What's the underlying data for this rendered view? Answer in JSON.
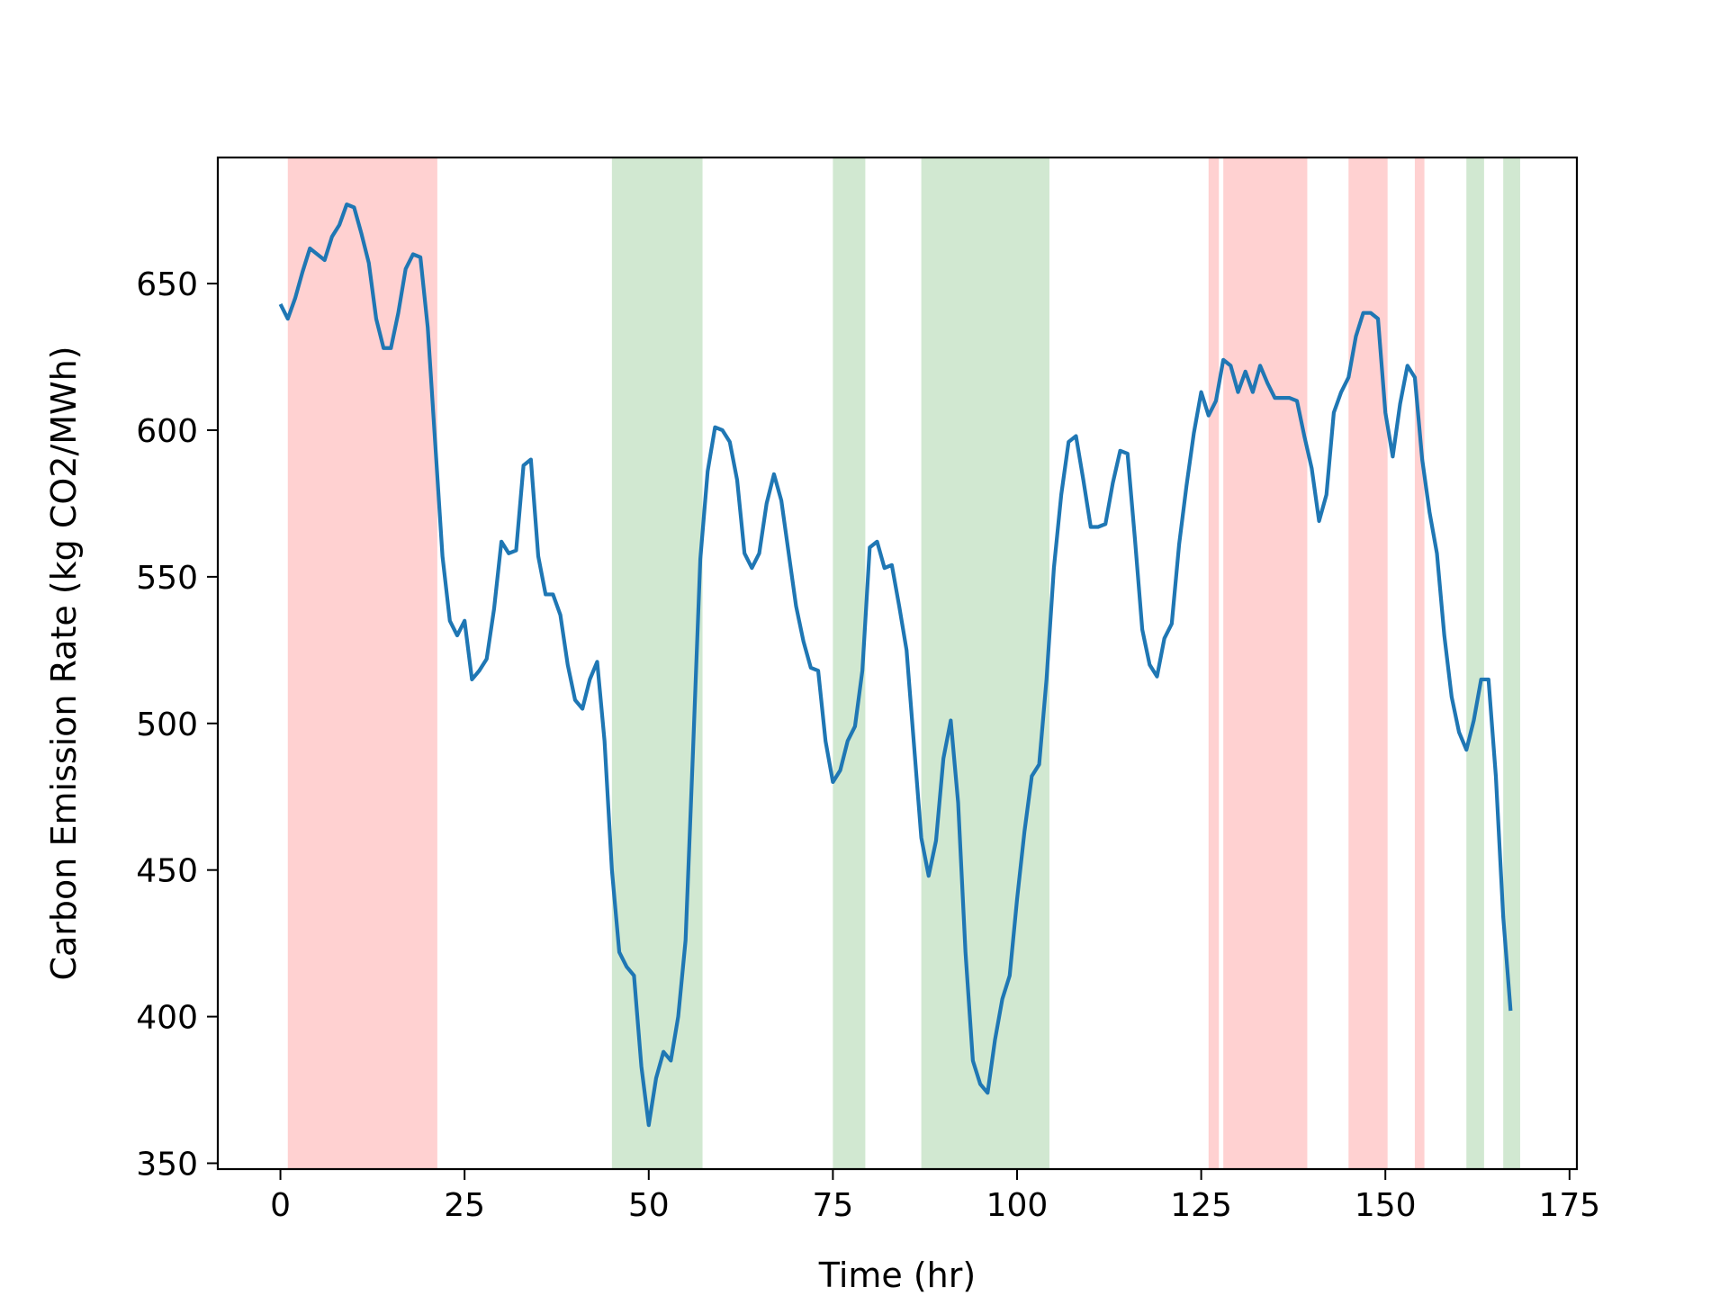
{
  "chart_data": {
    "type": "line",
    "title": "",
    "xlabel": "Time (hr)",
    "ylabel": "Carbon Emission Rate (kg CO2/MWh)",
    "xlim": [
      -8.5,
      176
    ],
    "ylim": [
      348,
      693
    ],
    "xticks": [
      0,
      25,
      50,
      75,
      100,
      125,
      150,
      175
    ],
    "yticks": [
      350,
      400,
      450,
      500,
      550,
      600,
      650
    ],
    "grid": false,
    "legend": "none",
    "colors": {
      "line": "#1f77b4",
      "high_band": "#ff9999",
      "low_band": "#99cc99"
    },
    "band_alpha": 0.45,
    "high_emission_bands": [
      [
        1,
        21.3
      ],
      [
        126,
        127.4
      ],
      [
        128,
        139.4
      ],
      [
        145,
        150.3
      ],
      [
        154,
        155.3
      ]
    ],
    "low_emission_bands": [
      [
        45,
        57.3
      ],
      [
        75,
        79.4
      ],
      [
        87,
        104.4
      ],
      [
        161,
        163.4
      ],
      [
        166,
        168.3
      ]
    ],
    "series": [
      {
        "x": [
          0,
          1,
          2,
          3,
          4,
          5,
          6,
          7,
          8,
          9,
          10,
          11,
          12,
          13,
          14,
          15,
          16,
          17,
          18,
          19,
          20,
          21,
          22,
          23,
          24,
          25,
          26,
          27,
          28,
          29,
          30,
          31,
          32,
          33,
          34,
          35,
          36,
          37,
          38,
          39,
          40,
          41,
          42,
          43,
          44,
          45,
          46,
          47,
          48,
          49,
          50,
          51,
          52,
          53,
          54,
          55,
          56,
          57,
          58,
          59,
          60,
          61,
          62,
          63,
          64,
          65,
          66,
          67,
          68,
          69,
          70,
          71,
          72,
          73,
          74,
          75,
          76,
          77,
          78,
          79,
          80,
          81,
          82,
          83,
          84,
          85,
          86,
          87,
          88,
          89,
          90,
          91,
          92,
          93,
          94,
          95,
          96,
          97,
          98,
          99,
          100,
          101,
          102,
          103,
          104,
          105,
          106,
          107,
          108,
          109,
          110,
          111,
          112,
          113,
          114,
          115,
          116,
          117,
          118,
          119,
          120,
          121,
          122,
          123,
          124,
          125,
          126,
          127,
          128,
          129,
          130,
          131,
          132,
          133,
          134,
          135,
          136,
          137,
          138,
          139,
          140,
          141,
          142,
          143,
          144,
          145,
          146,
          147,
          148,
          149,
          150,
          151,
          152,
          153,
          154,
          155,
          156,
          157,
          158,
          159,
          160,
          161,
          162,
          163,
          164,
          165,
          166,
          167
        ],
        "values": [
          643,
          638,
          645,
          654,
          662,
          660,
          658,
          666,
          670,
          677,
          676,
          667,
          657,
          638,
          628,
          628,
          640,
          655,
          660,
          659,
          635,
          596,
          557,
          535,
          530,
          535,
          515,
          518,
          522,
          539,
          562,
          558,
          559,
          588,
          590,
          557,
          544,
          544,
          537,
          520,
          508,
          505,
          515,
          521,
          494,
          450,
          422,
          417,
          414,
          383,
          363,
          379,
          388,
          385,
          400,
          426,
          490,
          556,
          586,
          601,
          600,
          596,
          583,
          558,
          553,
          558,
          575,
          585,
          576,
          558,
          540,
          528,
          519,
          518,
          494,
          480,
          484,
          494,
          499,
          518,
          560,
          562,
          553,
          554,
          540,
          525,
          493,
          461,
          448,
          460,
          488,
          501,
          473,
          422,
          385,
          377,
          374,
          392,
          406,
          414,
          440,
          463,
          482,
          486,
          515,
          553,
          578,
          596,
          598,
          583,
          567,
          567,
          568,
          582,
          593,
          592,
          563,
          532,
          520,
          516,
          529,
          534,
          561,
          581,
          599,
          613,
          605,
          610,
          624,
          622,
          613,
          620,
          613,
          622,
          616,
          611,
          611,
          611,
          610,
          598,
          587,
          569,
          578,
          606,
          613,
          618,
          632,
          640,
          640,
          638,
          606,
          591,
          609,
          622,
          618,
          590,
          572,
          558,
          530,
          509,
          497,
          491,
          501,
          515,
          515,
          482,
          434,
          402
        ]
      }
    ]
  }
}
